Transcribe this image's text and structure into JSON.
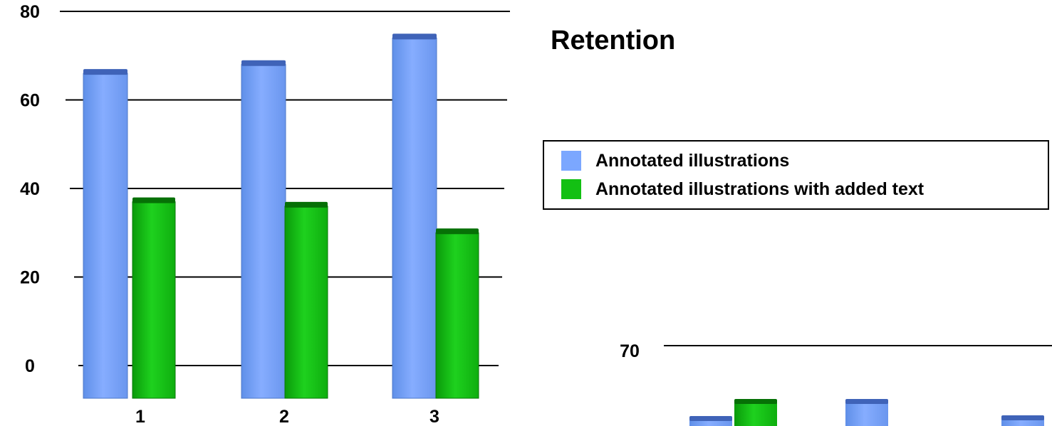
{
  "colors": {
    "series_1": "#7ba7ff",
    "series_2": "#13c013",
    "gridline": "#000000",
    "background": "#ffffff"
  },
  "title": "Retention",
  "chart_data": [
    {
      "type": "bar",
      "title": "Retention",
      "categories": [
        "1",
        "2",
        "3"
      ],
      "series": [
        {
          "name": "Annotated illustrations",
          "values": [
            66,
            68,
            74
          ]
        },
        {
          "name": "Annotated illustrations with added text",
          "values": [
            37,
            36,
            30
          ]
        }
      ],
      "y_ticks": [
        "0",
        "20",
        "40",
        "60",
        "80"
      ],
      "ylim": [
        0,
        80
      ],
      "grid": true,
      "legend_position": "right",
      "xlabel": "",
      "ylabel": ""
    },
    {
      "type": "bar",
      "title": "",
      "categories": [],
      "series": [
        {
          "name": "Annotated illustrations",
          "values": []
        },
        {
          "name": "Annotated illustrations with added text",
          "values": []
        }
      ],
      "y_ticks": [
        "70"
      ],
      "grid": true,
      "note": "partially visible chart, cropped at bottom edge"
    }
  ],
  "legend": [
    {
      "label": "Annotated illustrations"
    },
    {
      "label": "Annotated illustrations with added text"
    }
  ]
}
